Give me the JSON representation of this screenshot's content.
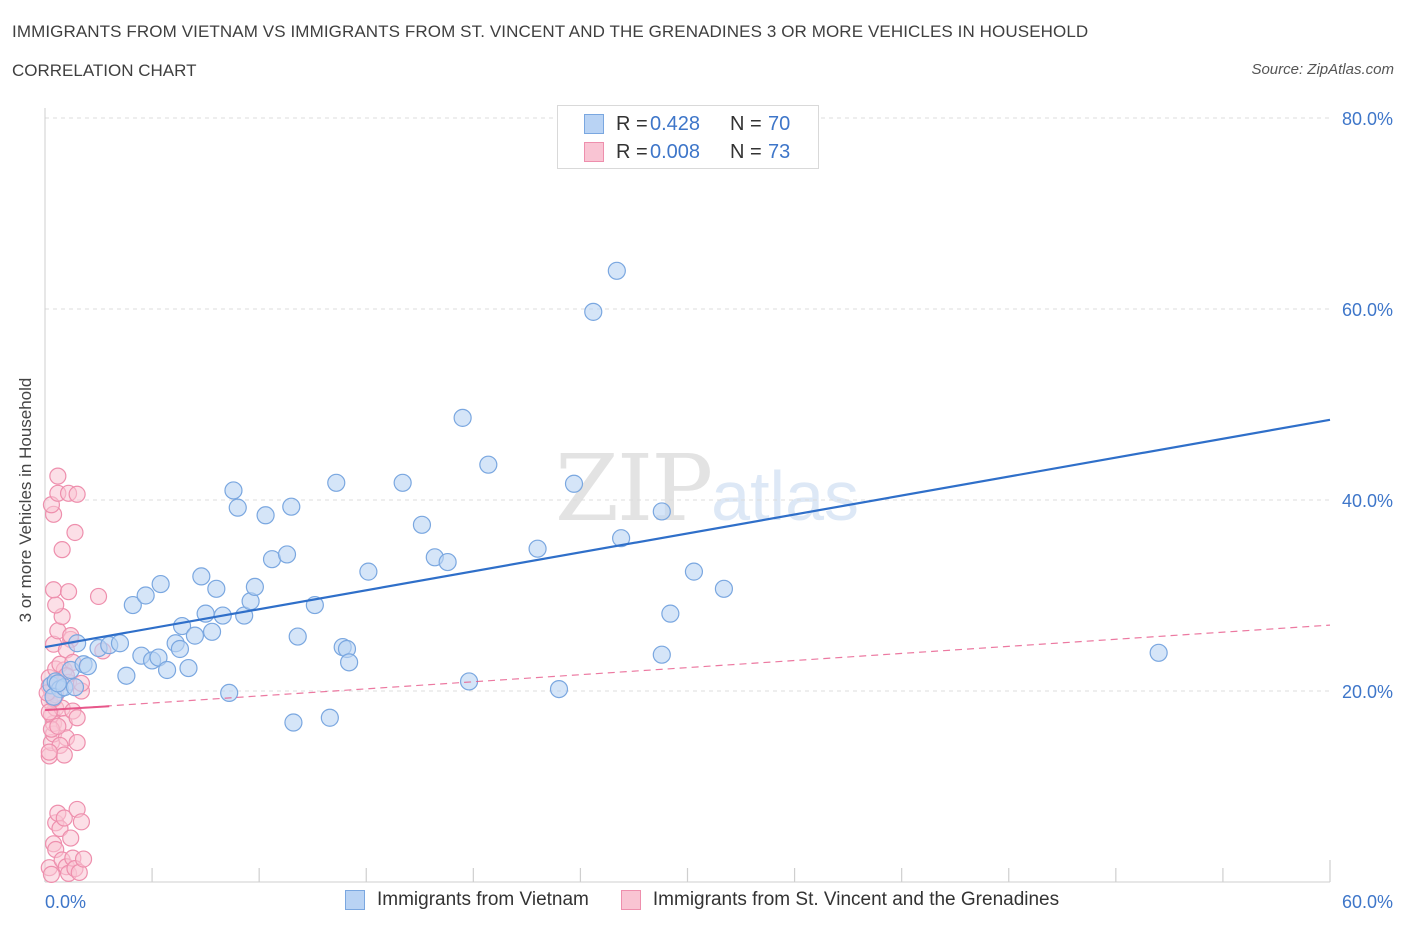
{
  "title": "IMMIGRANTS FROM VIETNAM VS IMMIGRANTS FROM ST. VINCENT AND THE GRENADINES 3 OR MORE VEHICLES IN HOUSEHOLD",
  "subtitle": "CORRELATION CHART",
  "source": "Source: ZipAtlas.com",
  "watermark": {
    "zip": "ZIP",
    "atlas": "atlas"
  },
  "legend": {
    "rows": [
      {
        "r_label": "R =",
        "r_value": "0.428",
        "n_label": "N =",
        "n_value": "70"
      },
      {
        "r_label": "R =",
        "r_value": "0.008",
        "n_label": "N =",
        "n_value": "73"
      }
    ]
  },
  "colors": {
    "series1_fill": "#b9d3f4",
    "series1_stroke": "#7aa7e0",
    "series1_line": "#2f6fc9",
    "series2_fill": "#f9c4d3",
    "series2_stroke": "#ee8fad",
    "series2_line": "#e7578a",
    "grid": "#dcdcdc",
    "tick_label": "#3e76c9"
  },
  "chart_data": {
    "type": "scatter",
    "title": "IMMIGRANTS FROM VIETNAM VS IMMIGRANTS FROM ST. VINCENT AND THE GRENADINES 3 OR MORE VEHICLES IN HOUSEHOLD",
    "xlabel": "",
    "ylabel": "3 or more Vehicles in Household",
    "xlim": [
      0,
      60
    ],
    "ylim": [
      0,
      80
    ],
    "x_tick_labels": [
      "0.0%",
      "60.0%"
    ],
    "y_ticks": [
      20,
      40,
      60,
      80
    ],
    "y_tick_labels": [
      "20.0%",
      "40.0%",
      "60.0%",
      "80.0%"
    ],
    "grid": true,
    "legend_position": "top-center",
    "series": [
      {
        "name": "Immigrants from Vietnam",
        "R": 0.428,
        "N": 70,
        "trend": {
          "x": [
            0,
            60
          ],
          "y": [
            24.6,
            48.4
          ],
          "style": "solid"
        },
        "points": [
          [
            0.3,
            20.6
          ],
          [
            0.5,
            21.0
          ],
          [
            0.7,
            20.2
          ],
          [
            0.4,
            19.4
          ],
          [
            0.9,
            20.4
          ],
          [
            1.2,
            22.2
          ],
          [
            1.4,
            20.4
          ],
          [
            1.5,
            25.0
          ],
          [
            1.8,
            22.8
          ],
          [
            2.0,
            22.6
          ],
          [
            2.5,
            24.5
          ],
          [
            3.0,
            24.8
          ],
          [
            3.5,
            25.0
          ],
          [
            3.8,
            21.6
          ],
          [
            4.1,
            29.0
          ],
          [
            4.5,
            23.7
          ],
          [
            4.7,
            30.0
          ],
          [
            5.0,
            23.2
          ],
          [
            5.3,
            23.5
          ],
          [
            5.4,
            31.2
          ],
          [
            5.7,
            22.2
          ],
          [
            6.1,
            25.0
          ],
          [
            6.3,
            24.4
          ],
          [
            6.4,
            26.8
          ],
          [
            6.7,
            22.4
          ],
          [
            7.0,
            25.8
          ],
          [
            7.3,
            32.0
          ],
          [
            7.5,
            28.1
          ],
          [
            7.8,
            26.2
          ],
          [
            8.0,
            30.7
          ],
          [
            8.3,
            27.9
          ],
          [
            8.6,
            19.8
          ],
          [
            8.8,
            41.0
          ],
          [
            9.0,
            39.2
          ],
          [
            9.3,
            27.9
          ],
          [
            9.6,
            29.4
          ],
          [
            9.8,
            30.9
          ],
          [
            10.3,
            38.4
          ],
          [
            10.6,
            33.8
          ],
          [
            11.3,
            34.3
          ],
          [
            11.5,
            39.3
          ],
          [
            11.6,
            16.7
          ],
          [
            11.8,
            25.7
          ],
          [
            12.6,
            29.0
          ],
          [
            13.3,
            17.2
          ],
          [
            13.6,
            41.8
          ],
          [
            13.9,
            24.6
          ],
          [
            14.1,
            24.4
          ],
          [
            14.2,
            23.0
          ],
          [
            15.1,
            32.5
          ],
          [
            16.7,
            41.8
          ],
          [
            17.6,
            37.4
          ],
          [
            18.2,
            34.0
          ],
          [
            18.8,
            33.5
          ],
          [
            19.5,
            48.6
          ],
          [
            19.8,
            21.0
          ],
          [
            20.7,
            43.7
          ],
          [
            23.0,
            34.9
          ],
          [
            24.0,
            20.2
          ],
          [
            24.7,
            41.7
          ],
          [
            25.6,
            59.7
          ],
          [
            26.7,
            64.0
          ],
          [
            26.9,
            36.0
          ],
          [
            28.8,
            38.8
          ],
          [
            28.8,
            23.8
          ],
          [
            29.2,
            28.1
          ],
          [
            30.3,
            32.5
          ],
          [
            31.7,
            30.7
          ],
          [
            52.0,
            24.0
          ],
          [
            0.6,
            20.8
          ]
        ]
      },
      {
        "name": "Immigrants from St. Vincent and the Grenadines",
        "R": 0.008,
        "N": 73,
        "trend_solid": {
          "x": [
            0,
            3
          ],
          "y": [
            18.0,
            18.4
          ]
        },
        "trend": {
          "x": [
            0,
            60
          ],
          "y": [
            18.0,
            26.9
          ],
          "style": "dashed"
        },
        "points": [
          [
            0.2,
            1.5
          ],
          [
            0.3,
            0.8
          ],
          [
            0.4,
            4.0
          ],
          [
            0.5,
            6.2
          ],
          [
            0.5,
            3.4
          ],
          [
            0.6,
            7.2
          ],
          [
            0.7,
            5.6
          ],
          [
            0.8,
            2.3
          ],
          [
            0.9,
            6.7
          ],
          [
            1.0,
            1.6
          ],
          [
            1.1,
            0.9
          ],
          [
            1.2,
            4.6
          ],
          [
            1.3,
            2.5
          ],
          [
            1.4,
            1.4
          ],
          [
            1.5,
            7.6
          ],
          [
            1.6,
            1.0
          ],
          [
            1.7,
            6.3
          ],
          [
            1.8,
            2.4
          ],
          [
            0.2,
            13.2
          ],
          [
            0.3,
            14.6
          ],
          [
            0.4,
            15.5
          ],
          [
            0.4,
            16.6
          ],
          [
            0.3,
            17.5
          ],
          [
            0.5,
            18.2
          ],
          [
            0.2,
            19.0
          ],
          [
            0.3,
            20.0
          ],
          [
            0.4,
            20.2
          ],
          [
            0.5,
            19.6
          ],
          [
            0.6,
            20.9
          ],
          [
            0.7,
            21.0
          ],
          [
            0.2,
            21.4
          ],
          [
            0.5,
            22.3
          ],
          [
            0.9,
            22.2
          ],
          [
            1.1,
            20.9
          ],
          [
            0.8,
            18.2
          ],
          [
            0.9,
            16.6
          ],
          [
            1.0,
            15.1
          ],
          [
            0.7,
            14.3
          ],
          [
            0.9,
            13.3
          ],
          [
            1.5,
            14.6
          ],
          [
            1.3,
            17.9
          ],
          [
            1.5,
            17.2
          ],
          [
            1.7,
            20.0
          ],
          [
            1.7,
            20.8
          ],
          [
            0.4,
            24.9
          ],
          [
            0.6,
            26.3
          ],
          [
            1.2,
            25.4
          ],
          [
            1.2,
            25.8
          ],
          [
            1.0,
            24.3
          ],
          [
            0.8,
            27.8
          ],
          [
            0.5,
            29.0
          ],
          [
            0.4,
            30.6
          ],
          [
            1.1,
            30.4
          ],
          [
            2.5,
            29.9
          ],
          [
            0.8,
            34.8
          ],
          [
            1.4,
            36.6
          ],
          [
            0.4,
            38.5
          ],
          [
            0.3,
            39.5
          ],
          [
            0.6,
            40.7
          ],
          [
            1.1,
            40.7
          ],
          [
            1.5,
            40.6
          ],
          [
            0.6,
            42.5
          ],
          [
            0.2,
            13.6
          ],
          [
            0.3,
            16.0
          ],
          [
            0.6,
            16.3
          ],
          [
            0.2,
            20.5
          ],
          [
            0.4,
            19.2
          ],
          [
            2.7,
            24.2
          ],
          [
            0.7,
            22.8
          ],
          [
            1.3,
            23.0
          ],
          [
            1.0,
            21.6
          ],
          [
            0.2,
            17.8
          ],
          [
            0.1,
            19.8
          ]
        ]
      }
    ]
  },
  "bottom_legend": [
    "Immigrants from Vietnam",
    "Immigrants from St. Vincent and the Grenadines"
  ]
}
